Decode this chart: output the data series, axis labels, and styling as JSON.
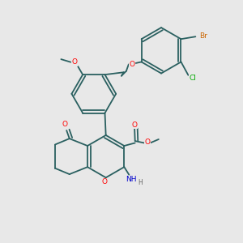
{
  "bg_color": "#e8e8e8",
  "bond_color": "#2a6060",
  "bond_width": 1.3,
  "dbo": 0.012,
  "atom_colors": {
    "O": "#ff0000",
    "N": "#0000cc",
    "Cl": "#00aa00",
    "Br": "#cc6600",
    "H": "#666666"
  },
  "fs": 7.0
}
